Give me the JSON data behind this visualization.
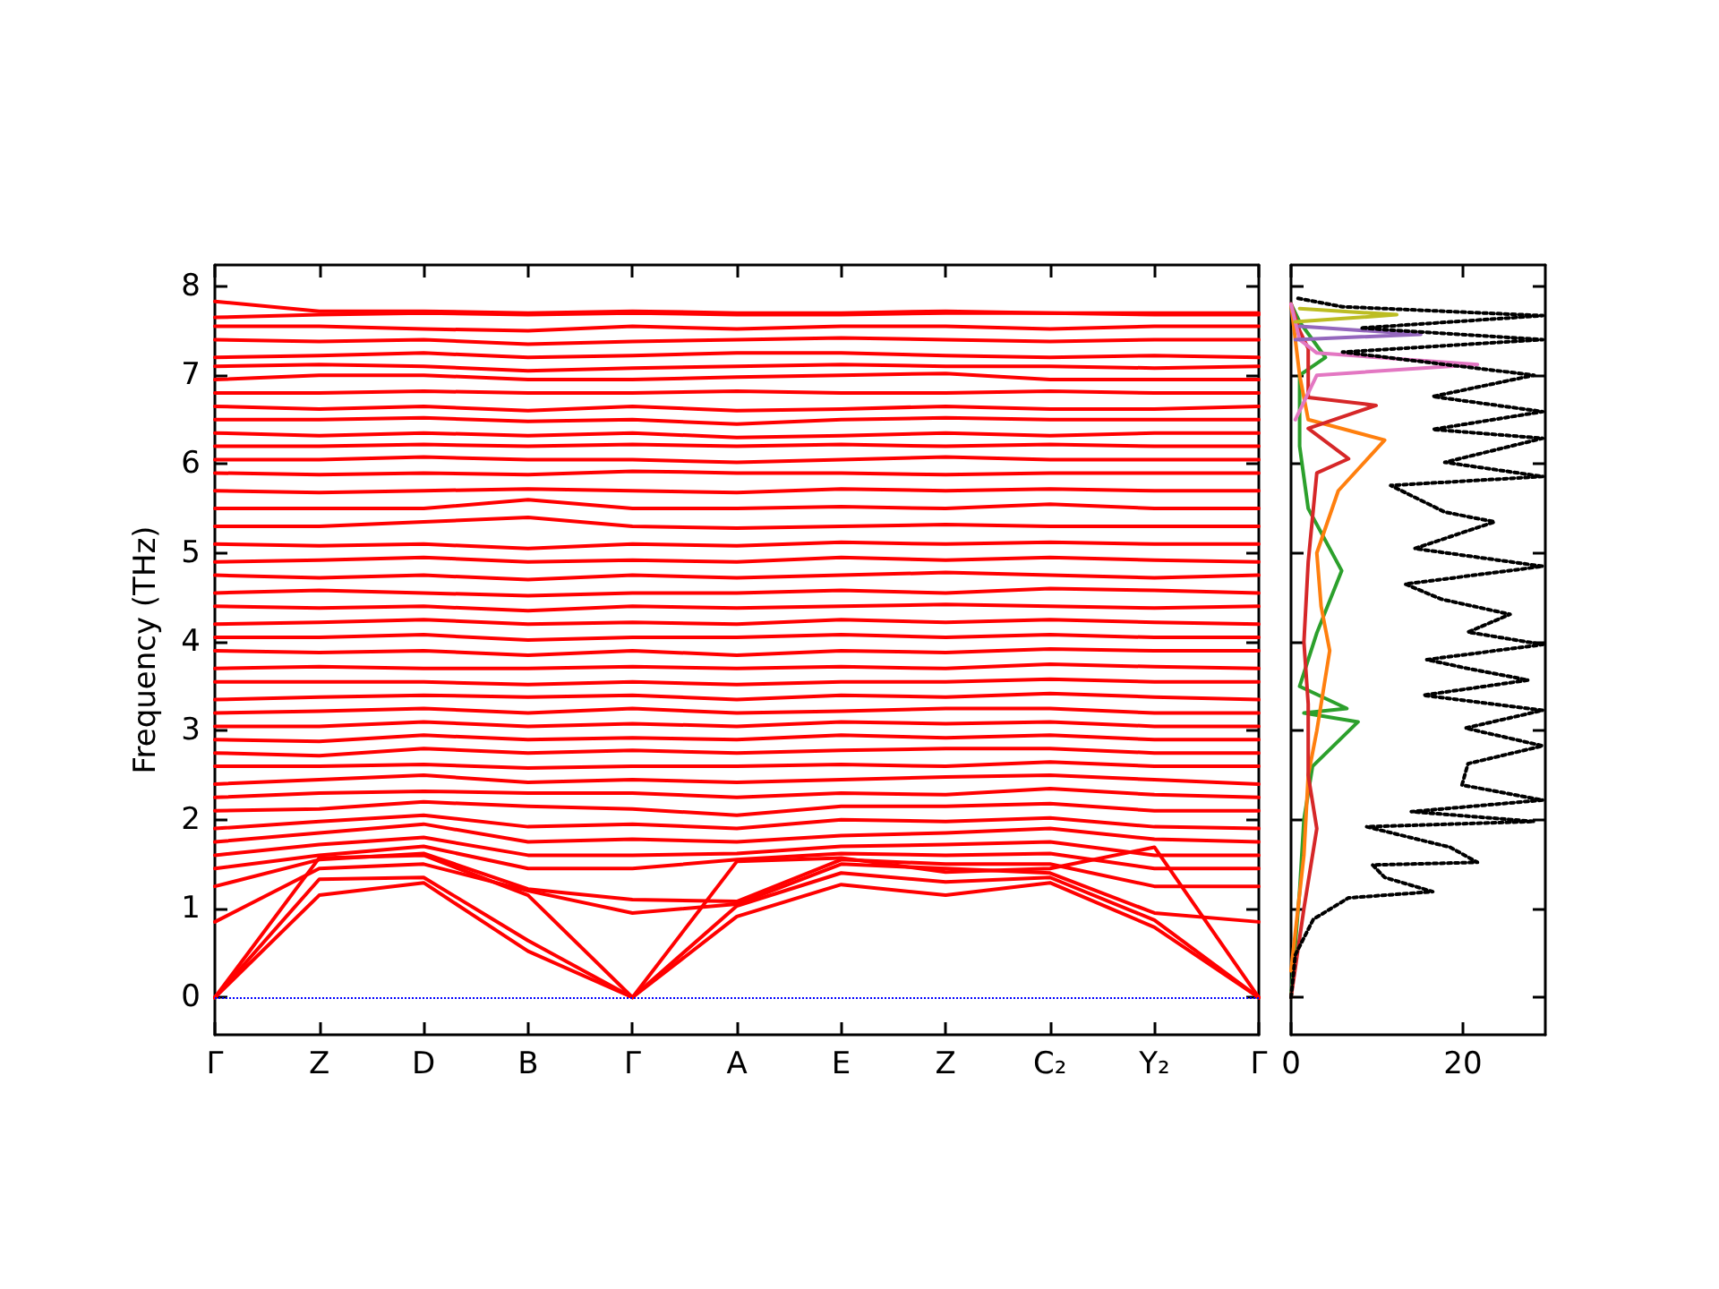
{
  "chart_data": [
    {
      "type": "line",
      "ylabel": "Frequency (THz)",
      "marker": "none",
      "line_style": "solid",
      "categories": [
        "Γ",
        "Z",
        "D",
        "B",
        "Γ",
        "A",
        "E",
        "Z",
        "C₂",
        "Y₂",
        "Γ"
      ],
      "ylim": [
        -0.42,
        8.24
      ],
      "yticks": [
        0,
        1,
        2,
        3,
        4,
        5,
        6,
        7,
        8
      ],
      "ref_lines": [
        {
          "axis": "y",
          "value": 0,
          "color": "#0000ff",
          "line_style": "dotted"
        }
      ],
      "series": [
        {
          "color": "#ff0000",
          "values": [
            0,
            1.15,
            1.29,
            0.52,
            0,
            0.91,
            1.27,
            1.15,
            1.29,
            0.79,
            0
          ]
        },
        {
          "color": "#ff0000",
          "values": [
            0,
            1.33,
            1.35,
            0.64,
            0,
            1.03,
            1.4,
            1.3,
            1.35,
            0.87,
            0
          ]
        },
        {
          "color": "#ff0000",
          "values": [
            0,
            1.57,
            1.6,
            1.15,
            0,
            1.53,
            1.57,
            1.41,
            1.45,
            1.69,
            0
          ]
        },
        {
          "color": "#ff0000",
          "values": [
            0.85,
            1.45,
            1.5,
            1.2,
            0.95,
            1.05,
            1.5,
            1.45,
            1.4,
            0.95,
            0.85
          ]
        },
        {
          "color": "#ff0000",
          "values": [
            1.25,
            1.55,
            1.62,
            1.22,
            1.1,
            1.08,
            1.55,
            1.5,
            1.5,
            1.25,
            1.25
          ]
        },
        {
          "color": "#ff0000",
          "values": [
            1.45,
            1.6,
            1.7,
            1.45,
            1.45,
            1.55,
            1.62,
            1.6,
            1.62,
            1.45,
            1.45
          ]
        },
        {
          "color": "#ff0000",
          "values": [
            1.6,
            1.72,
            1.8,
            1.6,
            1.6,
            1.62,
            1.7,
            1.72,
            1.75,
            1.6,
            1.6
          ]
        },
        {
          "color": "#ff0000",
          "values": [
            1.75,
            1.85,
            1.95,
            1.75,
            1.78,
            1.75,
            1.82,
            1.85,
            1.9,
            1.78,
            1.75
          ]
        },
        {
          "color": "#ff0000",
          "values": [
            1.9,
            1.98,
            2.05,
            1.92,
            1.95,
            1.9,
            2.0,
            1.98,
            2.02,
            1.92,
            1.9
          ]
        },
        {
          "color": "#ff0000",
          "values": [
            2.1,
            2.12,
            2.2,
            2.15,
            2.12,
            2.05,
            2.15,
            2.15,
            2.18,
            2.1,
            2.1
          ]
        },
        {
          "color": "#ff0000",
          "values": [
            2.25,
            2.3,
            2.32,
            2.3,
            2.3,
            2.25,
            2.3,
            2.28,
            2.35,
            2.28,
            2.25
          ]
        },
        {
          "color": "#ff0000",
          "values": [
            2.4,
            2.45,
            2.5,
            2.42,
            2.45,
            2.42,
            2.45,
            2.48,
            2.5,
            2.45,
            2.4
          ]
        },
        {
          "color": "#ff0000",
          "values": [
            2.6,
            2.6,
            2.62,
            2.58,
            2.6,
            2.6,
            2.62,
            2.6,
            2.65,
            2.6,
            2.6
          ]
        },
        {
          "color": "#ff0000",
          "values": [
            2.75,
            2.72,
            2.8,
            2.75,
            2.78,
            2.75,
            2.78,
            2.8,
            2.8,
            2.75,
            2.75
          ]
        },
        {
          "color": "#ff0000",
          "values": [
            2.9,
            2.88,
            2.95,
            2.9,
            2.92,
            2.9,
            2.95,
            2.92,
            2.95,
            2.9,
            2.9
          ]
        },
        {
          "color": "#ff0000",
          "values": [
            3.05,
            3.05,
            3.1,
            3.05,
            3.08,
            3.05,
            3.1,
            3.08,
            3.1,
            3.05,
            3.05
          ]
        },
        {
          "color": "#ff0000",
          "values": [
            3.2,
            3.22,
            3.25,
            3.2,
            3.25,
            3.2,
            3.22,
            3.25,
            3.25,
            3.2,
            3.2
          ]
        },
        {
          "color": "#ff0000",
          "values": [
            3.35,
            3.38,
            3.4,
            3.38,
            3.4,
            3.35,
            3.4,
            3.38,
            3.42,
            3.38,
            3.35
          ]
        },
        {
          "color": "#ff0000",
          "values": [
            3.55,
            3.55,
            3.55,
            3.52,
            3.55,
            3.52,
            3.55,
            3.55,
            3.58,
            3.55,
            3.55
          ]
        },
        {
          "color": "#ff0000",
          "values": [
            3.7,
            3.72,
            3.7,
            3.7,
            3.72,
            3.7,
            3.72,
            3.7,
            3.75,
            3.72,
            3.7
          ]
        },
        {
          "color": "#ff0000",
          "values": [
            3.9,
            3.88,
            3.9,
            3.85,
            3.9,
            3.85,
            3.9,
            3.88,
            3.92,
            3.9,
            3.9
          ]
        },
        {
          "color": "#ff0000",
          "values": [
            4.05,
            4.05,
            4.08,
            4.02,
            4.05,
            4.05,
            4.08,
            4.05,
            4.08,
            4.05,
            4.05
          ]
        },
        {
          "color": "#ff0000",
          "values": [
            4.2,
            4.22,
            4.25,
            4.2,
            4.22,
            4.2,
            4.25,
            4.22,
            4.25,
            4.22,
            4.2
          ]
        },
        {
          "color": "#ff0000",
          "values": [
            4.4,
            4.38,
            4.4,
            4.35,
            4.4,
            4.38,
            4.4,
            4.42,
            4.4,
            4.38,
            4.4
          ]
        },
        {
          "color": "#ff0000",
          "values": [
            4.55,
            4.58,
            4.55,
            4.52,
            4.55,
            4.55,
            4.58,
            4.55,
            4.6,
            4.58,
            4.55
          ]
        },
        {
          "color": "#ff0000",
          "values": [
            4.75,
            4.72,
            4.75,
            4.7,
            4.75,
            4.72,
            4.75,
            4.78,
            4.75,
            4.72,
            4.75
          ]
        },
        {
          "color": "#ff0000",
          "values": [
            4.9,
            4.92,
            4.95,
            4.9,
            4.92,
            4.9,
            4.95,
            4.92,
            4.95,
            4.92,
            4.9
          ]
        },
        {
          "color": "#ff0000",
          "values": [
            5.1,
            5.08,
            5.1,
            5.05,
            5.1,
            5.08,
            5.12,
            5.1,
            5.12,
            5.1,
            5.1
          ]
        },
        {
          "color": "#ff0000",
          "values": [
            5.3,
            5.3,
            5.35,
            5.4,
            5.3,
            5.28,
            5.3,
            5.32,
            5.3,
            5.3,
            5.3
          ]
        },
        {
          "color": "#ff0000",
          "values": [
            5.5,
            5.5,
            5.5,
            5.6,
            5.5,
            5.5,
            5.52,
            5.5,
            5.55,
            5.5,
            5.5
          ]
        },
        {
          "color": "#ff0000",
          "values": [
            5.7,
            5.68,
            5.7,
            5.72,
            5.7,
            5.68,
            5.72,
            5.7,
            5.72,
            5.7,
            5.7
          ]
        },
        {
          "color": "#ff0000",
          "values": [
            5.9,
            5.88,
            5.9,
            5.88,
            5.92,
            5.9,
            5.9,
            5.88,
            5.9,
            5.9,
            5.9
          ]
        },
        {
          "color": "#ff0000",
          "values": [
            6.05,
            6.05,
            6.08,
            6.05,
            6.05,
            6.02,
            6.05,
            6.08,
            6.05,
            6.05,
            6.05
          ]
        },
        {
          "color": "#ff0000",
          "values": [
            6.2,
            6.2,
            6.22,
            6.2,
            6.22,
            6.2,
            6.22,
            6.2,
            6.22,
            6.2,
            6.2
          ]
        },
        {
          "color": "#ff0000",
          "values": [
            6.35,
            6.32,
            6.35,
            6.32,
            6.35,
            6.3,
            6.32,
            6.35,
            6.32,
            6.35,
            6.35
          ]
        },
        {
          "color": "#ff0000",
          "values": [
            6.5,
            6.5,
            6.52,
            6.48,
            6.5,
            6.45,
            6.5,
            6.52,
            6.5,
            6.5,
            6.5
          ]
        },
        {
          "color": "#ff0000",
          "values": [
            6.65,
            6.62,
            6.65,
            6.6,
            6.65,
            6.6,
            6.62,
            6.65,
            6.62,
            6.62,
            6.65
          ]
        },
        {
          "color": "#ff0000",
          "values": [
            6.8,
            6.8,
            6.82,
            6.8,
            6.8,
            6.82,
            6.8,
            6.8,
            6.82,
            6.8,
            6.8
          ]
        },
        {
          "color": "#ff0000",
          "values": [
            6.95,
            7.0,
            7.0,
            6.95,
            6.95,
            6.98,
            7.0,
            7.02,
            6.95,
            6.95,
            6.95
          ]
        },
        {
          "color": "#ff0000",
          "values": [
            7.1,
            7.12,
            7.1,
            7.05,
            7.08,
            7.1,
            7.12,
            7.1,
            7.1,
            7.08,
            7.1
          ]
        },
        {
          "color": "#ff0000",
          "values": [
            7.2,
            7.22,
            7.25,
            7.2,
            7.22,
            7.25,
            7.25,
            7.22,
            7.2,
            7.22,
            7.2
          ]
        },
        {
          "color": "#ff0000",
          "values": [
            7.4,
            7.38,
            7.4,
            7.35,
            7.38,
            7.4,
            7.42,
            7.4,
            7.38,
            7.4,
            7.4
          ]
        },
        {
          "color": "#ff0000",
          "values": [
            7.55,
            7.55,
            7.52,
            7.5,
            7.55,
            7.52,
            7.55,
            7.55,
            7.52,
            7.55,
            7.55
          ]
        },
        {
          "color": "#ff0000",
          "values": [
            7.65,
            7.68,
            7.7,
            7.68,
            7.7,
            7.68,
            7.68,
            7.7,
            7.7,
            7.68,
            7.68
          ]
        },
        {
          "color": "#ff0000",
          "values": [
            7.83,
            7.72,
            7.72,
            7.7,
            7.72,
            7.7,
            7.7,
            7.72,
            7.7,
            7.7,
            7.7
          ]
        }
      ]
    },
    {
      "type": "line",
      "marker": "none",
      "tick_labels": "x",
      "xlim": [
        0,
        29.6
      ],
      "xticks": [
        0,
        20
      ],
      "ylim": [
        -0.42,
        8.24
      ],
      "yticks": [
        0,
        1,
        2,
        3,
        4,
        5,
        6,
        7,
        8
      ],
      "series": [
        {
          "color": "#2ca02c",
          "line_style": "solid",
          "x": [
            0,
            1,
            1.5,
            2.5,
            7.8,
            1.5,
            6.5,
            1,
            3,
            5.9,
            2,
            1,
            1,
            4,
            1,
            0
          ],
          "values": [
            0,
            1.2,
            2.0,
            2.6,
            3.1,
            3.2,
            3.25,
            3.5,
            4.1,
            4.8,
            5.5,
            6.2,
            7.0,
            7.2,
            7.6,
            7.8
          ]
        },
        {
          "color": "#ff7f0e",
          "line_style": "solid",
          "x": [
            0,
            1.5,
            2,
            3,
            4.5,
            3.5,
            3,
            5.5,
            10.9,
            2,
            1,
            0
          ],
          "values": [
            0.3,
            1.6,
            2.5,
            3.0,
            3.9,
            4.4,
            5.0,
            5.7,
            6.27,
            6.5,
            7.0,
            7.8
          ]
        },
        {
          "color": "#d62728",
          "line_style": "solid",
          "x": [
            0,
            1.5,
            3,
            2,
            2,
            1.5,
            2,
            3,
            6.7,
            2,
            9.9,
            2,
            2,
            1,
            0
          ],
          "values": [
            0,
            1.0,
            1.9,
            2.5,
            3.3,
            4.0,
            4.9,
            5.9,
            6.06,
            6.4,
            6.66,
            6.75,
            7.3,
            7.5,
            7.8
          ]
        },
        {
          "color": "#e377c2",
          "line_style": "solid",
          "x": [
            0.5,
            3,
            21.7,
            3,
            1,
            0
          ],
          "values": [
            6.5,
            7.0,
            7.12,
            7.25,
            7.4,
            7.8
          ]
        },
        {
          "color": "#9467bd",
          "line_style": "solid",
          "x": [
            0.5,
            15.1,
            1
          ],
          "values": [
            7.4,
            7.46,
            7.55
          ]
        },
        {
          "color": "#bcbd22",
          "line_style": "solid",
          "x": [
            0.5,
            12.3,
            1
          ],
          "values": [
            7.6,
            7.68,
            7.75
          ]
        },
        {
          "color": "#000000",
          "line_style": "dotted",
          "x": [
            0,
            0.5,
            2.6,
            6.7,
            16.5,
            10.9,
            9.5,
            21.7,
            18.5,
            8.8,
            28.3,
            14.0,
            29.3,
            19.9,
            20.6,
            29.3,
            20.3,
            29.3,
            15.4,
            27.6,
            20.6,
            15.8,
            29.3,
            20.6,
            25.5,
            17.5,
            13.3,
            29.3,
            14.4,
            23.7,
            17.9,
            11.6,
            29.3,
            17.9,
            29.3,
            16.5,
            29.3,
            16.5,
            28.3,
            6.0,
            29.3,
            8.1,
            29.3,
            6.0,
            0.5
          ],
          "values": [
            0,
            0.48,
            0.88,
            1.12,
            1.19,
            1.35,
            1.49,
            1.52,
            1.69,
            1.92,
            1.98,
            2.09,
            2.22,
            2.39,
            2.63,
            2.83,
            3.03,
            3.23,
            3.4,
            3.57,
            3.7,
            3.8,
            3.97,
            4.11,
            4.31,
            4.48,
            4.65,
            4.85,
            5.05,
            5.35,
            5.46,
            5.76,
            5.86,
            6.02,
            6.29,
            6.39,
            6.59,
            6.76,
            7.0,
            7.26,
            7.4,
            7.53,
            7.67,
            7.77,
            7.87
          ]
        }
      ]
    }
  ]
}
